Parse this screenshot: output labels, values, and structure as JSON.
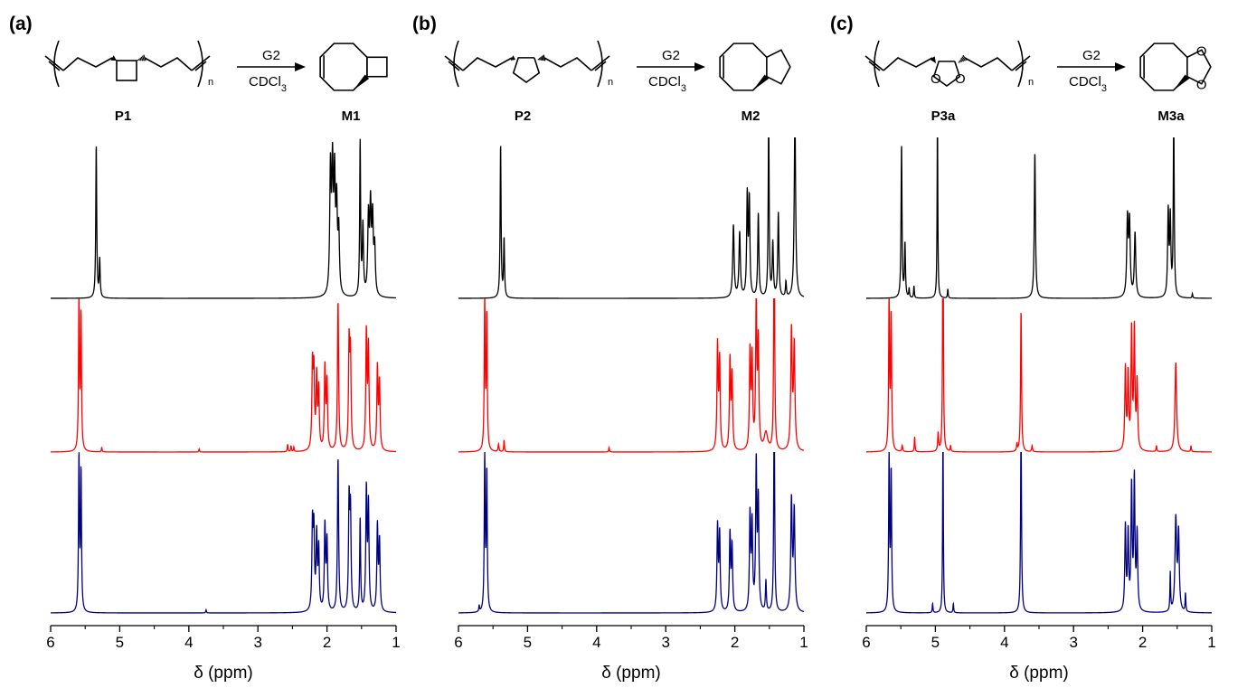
{
  "figure": {
    "colors": {
      "top_spectrum": "#000000",
      "middle_spectrum": "#ff0000",
      "bottom_spectrum": "#000080",
      "axis": "#000000"
    }
  },
  "chart_data": [
    {
      "type": "line",
      "panel_label": "(a)",
      "xlabel": "δ (ppm)",
      "x_ticks": [
        "6",
        "5",
        "4",
        "3",
        "2",
        "1"
      ],
      "xlim": [
        6,
        1
      ],
      "x_reversed": true,
      "scheme": {
        "polymer_label": "P1",
        "monomer_label": "M1",
        "catalyst": "G2",
        "solvent": "CDCl",
        "solvent_subscript": "3",
        "repeat_subscript": "n",
        "polymer_ring": "cyclobutane",
        "monomer_ring": "cyclobutane"
      },
      "series": [
        {
          "color": "#000000",
          "peaks": [
            {
              "ppm": 5.34,
              "h": 1.0,
              "w": 0.008
            },
            {
              "ppm": 5.29,
              "h": 0.25,
              "w": 0.008
            },
            {
              "ppm": 1.95,
              "h": 0.8,
              "w": 0.012
            },
            {
              "ppm": 1.92,
              "h": 0.78,
              "w": 0.012
            },
            {
              "ppm": 1.89,
              "h": 0.72,
              "w": 0.012
            },
            {
              "ppm": 1.86,
              "h": 0.55,
              "w": 0.012
            },
            {
              "ppm": 1.83,
              "h": 0.4,
              "w": 0.012
            },
            {
              "ppm": 1.52,
              "h": 1.0,
              "w": 0.008
            },
            {
              "ppm": 1.48,
              "h": 0.45,
              "w": 0.01
            },
            {
              "ppm": 1.4,
              "h": 0.5,
              "w": 0.012
            },
            {
              "ppm": 1.37,
              "h": 0.55,
              "w": 0.012
            },
            {
              "ppm": 1.34,
              "h": 0.48,
              "w": 0.012
            },
            {
              "ppm": 1.31,
              "h": 0.3,
              "w": 0.012
            }
          ]
        },
        {
          "color": "#ff0000",
          "peaks": [
            {
              "ppm": 5.59,
              "h": 1.0,
              "w": 0.008
            },
            {
              "ppm": 5.56,
              "h": 0.9,
              "w": 0.008
            },
            {
              "ppm": 2.21,
              "h": 0.55,
              "w": 0.01
            },
            {
              "ppm": 2.19,
              "h": 0.5,
              "w": 0.01
            },
            {
              "ppm": 2.15,
              "h": 0.48,
              "w": 0.01
            },
            {
              "ppm": 2.12,
              "h": 0.4,
              "w": 0.01
            },
            {
              "ppm": 2.03,
              "h": 0.55,
              "w": 0.01
            },
            {
              "ppm": 2.0,
              "h": 0.45,
              "w": 0.01
            },
            {
              "ppm": 1.84,
              "h": 1.0,
              "w": 0.01
            },
            {
              "ppm": 1.68,
              "h": 0.7,
              "w": 0.01
            },
            {
              "ppm": 1.66,
              "h": 0.62,
              "w": 0.01
            },
            {
              "ppm": 1.43,
              "h": 0.78,
              "w": 0.01
            },
            {
              "ppm": 1.4,
              "h": 0.68,
              "w": 0.01
            },
            {
              "ppm": 1.27,
              "h": 0.55,
              "w": 0.01
            },
            {
              "ppm": 1.24,
              "h": 0.45,
              "w": 0.01
            },
            {
              "ppm": 2.57,
              "h": 0.05,
              "w": 0.006
            },
            {
              "ppm": 2.52,
              "h": 0.04,
              "w": 0.006
            },
            {
              "ppm": 2.48,
              "h": 0.03,
              "w": 0.006
            },
            {
              "ppm": 5.26,
              "h": 0.03,
              "w": 0.006
            },
            {
              "ppm": 3.85,
              "h": 0.02,
              "w": 0.006
            }
          ]
        },
        {
          "color": "#000080",
          "peaks": [
            {
              "ppm": 5.59,
              "h": 1.0,
              "w": 0.008
            },
            {
              "ppm": 5.56,
              "h": 0.9,
              "w": 0.008
            },
            {
              "ppm": 2.21,
              "h": 0.55,
              "w": 0.01
            },
            {
              "ppm": 2.19,
              "h": 0.5,
              "w": 0.01
            },
            {
              "ppm": 2.15,
              "h": 0.48,
              "w": 0.01
            },
            {
              "ppm": 2.12,
              "h": 0.4,
              "w": 0.01
            },
            {
              "ppm": 2.03,
              "h": 0.55,
              "w": 0.01
            },
            {
              "ppm": 2.0,
              "h": 0.45,
              "w": 0.01
            },
            {
              "ppm": 1.84,
              "h": 1.0,
              "w": 0.01
            },
            {
              "ppm": 1.68,
              "h": 0.7,
              "w": 0.01
            },
            {
              "ppm": 1.66,
              "h": 0.62,
              "w": 0.01
            },
            {
              "ppm": 1.52,
              "h": 0.6,
              "w": 0.008
            },
            {
              "ppm": 1.43,
              "h": 0.78,
              "w": 0.01
            },
            {
              "ppm": 1.4,
              "h": 0.68,
              "w": 0.01
            },
            {
              "ppm": 1.27,
              "h": 0.55,
              "w": 0.01
            },
            {
              "ppm": 1.24,
              "h": 0.45,
              "w": 0.01
            },
            {
              "ppm": 3.75,
              "h": 0.02,
              "w": 0.006
            }
          ]
        }
      ]
    },
    {
      "type": "line",
      "panel_label": "(b)",
      "xlabel": "δ (ppm)",
      "x_ticks": [
        "6",
        "5",
        "4",
        "3",
        "2",
        "1"
      ],
      "xlim": [
        6,
        1
      ],
      "x_reversed": true,
      "scheme": {
        "polymer_label": "P2",
        "monomer_label": "M2",
        "catalyst": "G2",
        "solvent": "CDCl",
        "solvent_subscript": "3",
        "repeat_subscript": "n",
        "polymer_ring": "cyclopentane",
        "monomer_ring": "cyclopentane"
      },
      "series": [
        {
          "color": "#000000",
          "peaks": [
            {
              "ppm": 5.39,
              "h": 1.0,
              "w": 0.008
            },
            {
              "ppm": 5.34,
              "h": 0.38,
              "w": 0.008
            },
            {
              "ppm": 2.02,
              "h": 0.47,
              "w": 0.012
            },
            {
              "ppm": 1.93,
              "h": 0.42,
              "w": 0.012
            },
            {
              "ppm": 1.82,
              "h": 0.65,
              "w": 0.01
            },
            {
              "ppm": 1.79,
              "h": 0.62,
              "w": 0.01
            },
            {
              "ppm": 1.66,
              "h": 0.55,
              "w": 0.01
            },
            {
              "ppm": 1.51,
              "h": 1.2,
              "w": 0.008
            },
            {
              "ppm": 1.45,
              "h": 0.35,
              "w": 0.01
            },
            {
              "ppm": 1.37,
              "h": 0.55,
              "w": 0.01
            },
            {
              "ppm": 1.26,
              "h": 0.1,
              "w": 0.008
            },
            {
              "ppm": 1.13,
              "h": 1.2,
              "w": 0.012
            }
          ]
        },
        {
          "color": "#ff0000",
          "peaks": [
            {
              "ppm": 5.62,
              "h": 1.0,
              "w": 0.008
            },
            {
              "ppm": 5.59,
              "h": 0.9,
              "w": 0.008
            },
            {
              "ppm": 2.25,
              "h": 0.7,
              "w": 0.01
            },
            {
              "ppm": 2.22,
              "h": 0.6,
              "w": 0.01
            },
            {
              "ppm": 2.07,
              "h": 0.6,
              "w": 0.01
            },
            {
              "ppm": 2.04,
              "h": 0.5,
              "w": 0.01
            },
            {
              "ppm": 1.78,
              "h": 0.65,
              "w": 0.01
            },
            {
              "ppm": 1.75,
              "h": 0.6,
              "w": 0.01
            },
            {
              "ppm": 1.69,
              "h": 1.0,
              "w": 0.01
            },
            {
              "ppm": 1.66,
              "h": 0.7,
              "w": 0.01
            },
            {
              "ppm": 1.55,
              "h": 0.12,
              "w": 0.03
            },
            {
              "ppm": 1.43,
              "h": 1.6,
              "w": 0.008
            },
            {
              "ppm": 1.18,
              "h": 0.8,
              "w": 0.012
            },
            {
              "ppm": 1.14,
              "h": 0.7,
              "w": 0.012
            },
            {
              "ppm": 5.42,
              "h": 0.05,
              "w": 0.008
            },
            {
              "ppm": 5.34,
              "h": 0.08,
              "w": 0.006
            },
            {
              "ppm": 3.82,
              "h": 0.03,
              "w": 0.006
            }
          ]
        },
        {
          "color": "#000080",
          "peaks": [
            {
              "ppm": 5.62,
              "h": 1.0,
              "w": 0.008
            },
            {
              "ppm": 5.59,
              "h": 0.9,
              "w": 0.008
            },
            {
              "ppm": 2.25,
              "h": 0.55,
              "w": 0.01
            },
            {
              "ppm": 2.22,
              "h": 0.5,
              "w": 0.01
            },
            {
              "ppm": 2.07,
              "h": 0.5,
              "w": 0.01
            },
            {
              "ppm": 2.04,
              "h": 0.42,
              "w": 0.01
            },
            {
              "ppm": 1.78,
              "h": 0.62,
              "w": 0.01
            },
            {
              "ppm": 1.75,
              "h": 0.55,
              "w": 0.01
            },
            {
              "ppm": 1.69,
              "h": 0.95,
              "w": 0.01
            },
            {
              "ppm": 1.66,
              "h": 0.7,
              "w": 0.01
            },
            {
              "ppm": 1.55,
              "h": 0.2,
              "w": 0.008
            },
            {
              "ppm": 1.43,
              "h": 1.4,
              "w": 0.008
            },
            {
              "ppm": 1.18,
              "h": 0.72,
              "w": 0.012
            },
            {
              "ppm": 1.14,
              "h": 0.65,
              "w": 0.012
            },
            {
              "ppm": 5.7,
              "h": 0.04,
              "w": 0.006
            }
          ]
        }
      ]
    },
    {
      "type": "line",
      "panel_label": "(c)",
      "xlabel": "δ (ppm)",
      "x_ticks": [
        "6",
        "5",
        "4",
        "3",
        "2",
        "1"
      ],
      "xlim": [
        6,
        1
      ],
      "x_reversed": true,
      "scheme": {
        "polymer_label": "P3a",
        "monomer_label": "M3a",
        "catalyst": "G2",
        "solvent": "CDCl",
        "solvent_subscript": "3",
        "repeat_subscript": "n",
        "polymer_ring": "1,3-dioxolane",
        "monomer_ring": "1,3-dioxolane"
      },
      "series": [
        {
          "color": "#000000",
          "peaks": [
            {
              "ppm": 5.49,
              "h": 1.0,
              "w": 0.008
            },
            {
              "ppm": 5.44,
              "h": 0.35,
              "w": 0.008
            },
            {
              "ppm": 5.38,
              "h": 0.06,
              "w": 0.006
            },
            {
              "ppm": 5.31,
              "h": 0.08,
              "w": 0.006
            },
            {
              "ppm": 4.97,
              "h": 1.2,
              "w": 0.006
            },
            {
              "ppm": 4.82,
              "h": 0.06,
              "w": 0.006
            },
            {
              "ppm": 3.56,
              "h": 0.95,
              "w": 0.01
            },
            {
              "ppm": 2.22,
              "h": 0.5,
              "w": 0.012
            },
            {
              "ppm": 2.19,
              "h": 0.48,
              "w": 0.012
            },
            {
              "ppm": 2.11,
              "h": 0.42,
              "w": 0.012
            },
            {
              "ppm": 1.63,
              "h": 0.55,
              "w": 0.01
            },
            {
              "ppm": 1.6,
              "h": 0.5,
              "w": 0.01
            },
            {
              "ppm": 1.55,
              "h": 1.2,
              "w": 0.008
            },
            {
              "ppm": 1.28,
              "h": 0.03,
              "w": 0.006
            }
          ]
        },
        {
          "color": "#ff0000",
          "peaks": [
            {
              "ppm": 5.67,
              "h": 1.0,
              "w": 0.008
            },
            {
              "ppm": 5.64,
              "h": 0.9,
              "w": 0.008
            },
            {
              "ppm": 5.48,
              "h": 0.04,
              "w": 0.008
            },
            {
              "ppm": 5.3,
              "h": 0.1,
              "w": 0.006
            },
            {
              "ppm": 4.96,
              "h": 0.12,
              "w": 0.008
            },
            {
              "ppm": 4.89,
              "h": 2.0,
              "w": 0.006
            },
            {
              "ppm": 4.78,
              "h": 0.04,
              "w": 0.006
            },
            {
              "ppm": 3.76,
              "h": 0.95,
              "w": 0.008
            },
            {
              "ppm": 3.82,
              "h": 0.05,
              "w": 0.006
            },
            {
              "ppm": 3.6,
              "h": 0.04,
              "w": 0.008
            },
            {
              "ppm": 2.25,
              "h": 0.55,
              "w": 0.01
            },
            {
              "ppm": 2.21,
              "h": 0.5,
              "w": 0.01
            },
            {
              "ppm": 2.16,
              "h": 0.8,
              "w": 0.01
            },
            {
              "ppm": 2.12,
              "h": 0.8,
              "w": 0.01
            },
            {
              "ppm": 2.08,
              "h": 0.45,
              "w": 0.01
            },
            {
              "ppm": 1.52,
              "h": 0.6,
              "w": 0.014
            },
            {
              "ppm": 1.8,
              "h": 0.04,
              "w": 0.006
            },
            {
              "ppm": 1.3,
              "h": 0.04,
              "w": 0.006
            }
          ]
        },
        {
          "color": "#000080",
          "peaks": [
            {
              "ppm": 5.67,
              "h": 1.0,
              "w": 0.008
            },
            {
              "ppm": 5.64,
              "h": 0.9,
              "w": 0.008
            },
            {
              "ppm": 5.04,
              "h": 0.06,
              "w": 0.006
            },
            {
              "ppm": 4.89,
              "h": 1.2,
              "w": 0.006
            },
            {
              "ppm": 4.74,
              "h": 0.06,
              "w": 0.006
            },
            {
              "ppm": 3.76,
              "h": 1.2,
              "w": 0.008
            },
            {
              "ppm": 2.25,
              "h": 0.55,
              "w": 0.01
            },
            {
              "ppm": 2.21,
              "h": 0.5,
              "w": 0.01
            },
            {
              "ppm": 2.16,
              "h": 0.8,
              "w": 0.01
            },
            {
              "ppm": 2.12,
              "h": 0.85,
              "w": 0.01
            },
            {
              "ppm": 2.08,
              "h": 0.5,
              "w": 0.01
            },
            {
              "ppm": 1.6,
              "h": 0.25,
              "w": 0.006
            },
            {
              "ppm": 1.52,
              "h": 0.6,
              "w": 0.014
            },
            {
              "ppm": 1.48,
              "h": 0.5,
              "w": 0.012
            },
            {
              "ppm": 1.38,
              "h": 0.12,
              "w": 0.006
            }
          ]
        }
      ]
    }
  ]
}
